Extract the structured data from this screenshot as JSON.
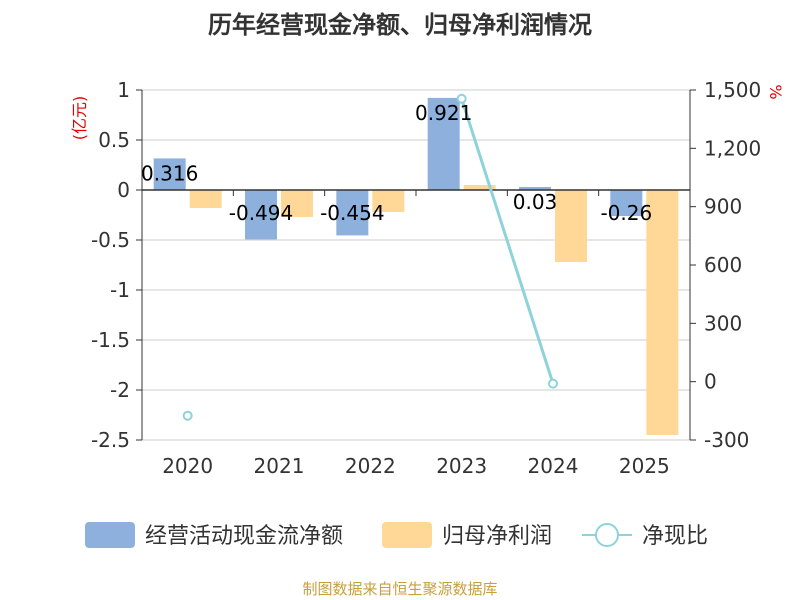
{
  "chart_data": {
    "type": "bar+line",
    "title": "历年经营现金净额、归母净利润情况",
    "categories": [
      "2020",
      "2021",
      "2022",
      "2023",
      "2024",
      "2025"
    ],
    "left_axis": {
      "unit": "(亿元)",
      "min": -2.5,
      "max": 1,
      "ticks": [
        1,
        0.5,
        0,
        -0.5,
        -1,
        -1.5,
        -2,
        -2.5
      ],
      "tick_labels": [
        "1",
        "0.5",
        "0",
        "-0.5",
        "-1",
        "-1.5",
        "-2",
        "-2.5"
      ]
    },
    "right_axis": {
      "unit": "%",
      "min": -300,
      "max": 1500,
      "ticks": [
        1500,
        1200,
        900,
        600,
        300,
        0,
        -300
      ],
      "tick_labels": [
        "1,500",
        "1,200",
        "900",
        "600",
        "300",
        "0",
        "-300"
      ]
    },
    "series": [
      {
        "name": "经营活动现金流净额",
        "type": "bar",
        "axis": "left",
        "color": "#8eb0dd",
        "values": [
          0.316,
          -0.494,
          -0.454,
          0.921,
          0.03,
          -0.26
        ],
        "labels": [
          "0.316",
          "-0.494",
          "-0.454",
          "0.921",
          "0.03",
          "-0.26"
        ]
      },
      {
        "name": "归母净利润",
        "type": "bar",
        "axis": "left",
        "color": "#ffd898",
        "values": [
          -0.18,
          -0.27,
          -0.22,
          0.05,
          -0.72,
          -2.45
        ],
        "labels": [
          "",
          "",
          "",
          "",
          "",
          ""
        ]
      },
      {
        "name": "净现比",
        "type": "line",
        "axis": "right",
        "color": "#8ed3da",
        "values": [
          -175,
          null,
          null,
          1455,
          -10,
          null
        ]
      }
    ],
    "legend_position": "bottom",
    "source": "制图数据来自恒生聚源数据库"
  }
}
